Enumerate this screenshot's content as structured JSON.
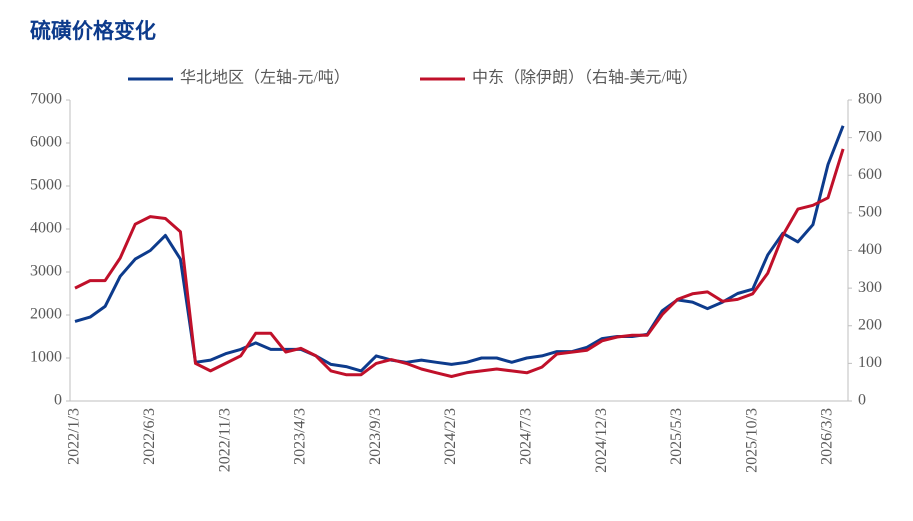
{
  "chart_data": {
    "type": "line",
    "title": "硫磺价格变化",
    "categories": [
      "2022/1/3",
      null,
      null,
      null,
      null,
      "2022/6/3",
      null,
      null,
      null,
      null,
      "2022/11/3",
      null,
      null,
      null,
      null,
      "2023/4/3",
      null,
      null,
      null,
      null,
      "2023/9/3",
      null,
      null,
      null,
      null,
      "2024/2/3",
      null,
      null,
      null,
      null,
      "2024/7/3",
      null,
      null,
      null,
      null,
      "2024/12/3",
      null,
      null,
      null,
      null,
      "2025/5/3",
      null,
      null,
      null,
      null,
      "2025/10/3",
      null,
      null,
      null,
      null,
      "2026/3/3",
      null
    ],
    "series": [
      {
        "name": "华北地区（左轴-元/吨）",
        "color": "#0d3b8c",
        "axis": "y",
        "values": [
          1850,
          1950,
          2200,
          2900,
          3300,
          3500,
          3850,
          3300,
          900,
          950,
          1100,
          1200,
          1350,
          1200,
          1200,
          1200,
          1050,
          850,
          800,
          700,
          1050,
          950,
          900,
          950,
          900,
          850,
          900,
          1000,
          1000,
          900,
          1000,
          1050,
          1150,
          1150,
          1250,
          1450,
          1500,
          1500,
          1550,
          2100,
          2350,
          2300,
          2150,
          2300,
          2500,
          2600,
          3400,
          3900,
          3700,
          4100,
          5500,
          6400
        ]
      },
      {
        "name": "中东（除伊朗）（右轴-美元/吨）",
        "color": "#c0102a",
        "axis": "y2",
        "values": [
          300,
          320,
          320,
          380,
          470,
          490,
          485,
          450,
          100,
          80,
          100,
          120,
          180,
          180,
          130,
          140,
          120,
          80,
          70,
          70,
          100,
          110,
          100,
          85,
          75,
          65,
          75,
          80,
          85,
          80,
          75,
          90,
          125,
          130,
          135,
          160,
          170,
          175,
          175,
          230,
          270,
          285,
          290,
          265,
          270,
          285,
          340,
          440,
          510,
          520,
          540,
          670
        ]
      }
    ],
    "ylim": [
      0,
      7000
    ],
    "yticks": [
      0,
      1000,
      2000,
      3000,
      4000,
      5000,
      6000,
      7000
    ],
    "y2lim": [
      0,
      800
    ],
    "y2ticks": [
      0,
      100,
      200,
      300,
      400,
      500,
      600,
      700,
      800
    ],
    "legend": "top"
  }
}
